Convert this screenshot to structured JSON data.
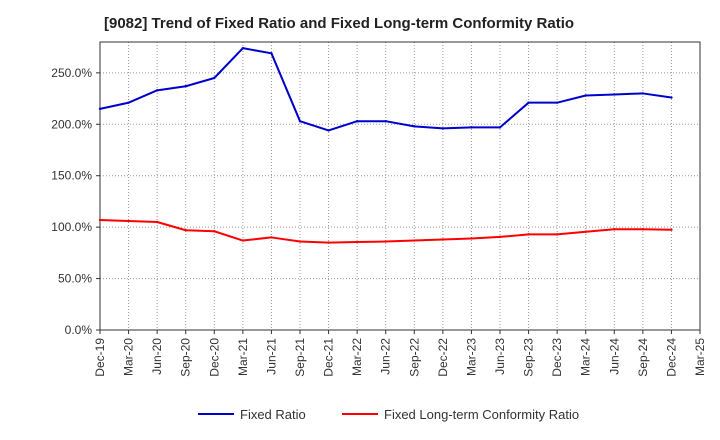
{
  "chart_data": {
    "type": "line",
    "title": "[9082]  Trend of Fixed Ratio and Fixed Long-term Conformity Ratio",
    "xlabel": "",
    "ylabel": "",
    "x_ticks": [
      "Dec-19",
      "Mar-20",
      "Jun-20",
      "Sep-20",
      "Dec-20",
      "Mar-21",
      "Jun-21",
      "Sep-21",
      "Dec-21",
      "Mar-22",
      "Jun-22",
      "Sep-22",
      "Dec-22",
      "Mar-23",
      "Jun-23",
      "Sep-23",
      "Dec-23",
      "Mar-24",
      "Jun-24",
      "Sep-24",
      "Dec-24",
      "Mar-25"
    ],
    "y_ticks": [
      "0.0%",
      "50.0%",
      "100.0%",
      "150.0%",
      "200.0%",
      "250.0%"
    ],
    "ylim": [
      0,
      280
    ],
    "grid": true,
    "legend_position": "bottom",
    "series": [
      {
        "name": "Fixed Ratio",
        "color": "#0000cc",
        "x": [
          "Dec-19",
          "Mar-20",
          "Jun-20",
          "Sep-20",
          "Dec-20",
          "Mar-21",
          "Jun-21",
          "Sep-21",
          "Dec-21",
          "Mar-22",
          "Jun-22",
          "Sep-22",
          "Dec-22",
          "Mar-23",
          "Jun-23",
          "Sep-23",
          "Dec-23",
          "Mar-24",
          "Jun-24",
          "Sep-24",
          "Dec-24"
        ],
        "values": [
          215,
          221,
          233,
          237,
          245,
          274,
          269,
          203,
          194,
          203,
          203,
          198,
          196,
          197,
          197,
          221,
          221,
          228,
          229,
          230,
          226
        ]
      },
      {
        "name": "Fixed Long-term Conformity Ratio",
        "color": "#ff0000",
        "x": [
          "Dec-19",
          "Mar-20",
          "Jun-20",
          "Sep-20",
          "Dec-20",
          "Mar-21",
          "Jun-21",
          "Sep-21",
          "Dec-21",
          "Mar-22",
          "Jun-22",
          "Sep-22",
          "Dec-22",
          "Mar-23",
          "Jun-23",
          "Sep-23",
          "Dec-23",
          "Mar-24",
          "Jun-24",
          "Sep-24",
          "Dec-24"
        ],
        "values": [
          107,
          106,
          105,
          97,
          96,
          87,
          90,
          86,
          85,
          85.5,
          86,
          87,
          88,
          89,
          90.5,
          93,
          93,
          95.5,
          98,
          98,
          97.5
        ]
      }
    ]
  }
}
